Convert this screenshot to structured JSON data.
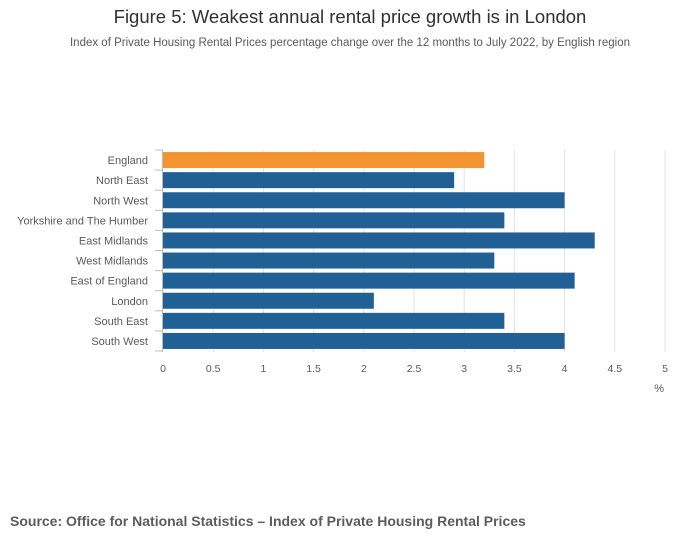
{
  "header": {
    "title": "Figure 5: Weakest annual rental price growth is in London",
    "subtitle": "Index of Private Housing Rental Prices percentage change over the 12 months to July 2022, by English region"
  },
  "footer": {
    "source": "Source: Office for National Statistics – Index of Private Housing Rental Prices"
  },
  "chart_data": {
    "type": "bar",
    "orientation": "horizontal",
    "title": "Figure 5: Weakest annual rental price growth is in London",
    "subtitle": "Index of Private Housing Rental Prices percentage change over the 12 months to July 2022, by English region",
    "categories": [
      "England",
      "North East",
      "North West",
      "Yorkshire and The Humber",
      "East Midlands",
      "West Midlands",
      "East of England",
      "London",
      "South East",
      "South West"
    ],
    "values": [
      3.2,
      2.9,
      4.0,
      3.4,
      4.3,
      3.3,
      4.1,
      2.1,
      3.4,
      4.0
    ],
    "xlabel": "%",
    "ylabel": "",
    "xlim": [
      0,
      5
    ],
    "xticks": [
      "0",
      "0.5",
      "1",
      "1.5",
      "2",
      "2.5",
      "3",
      "3.5",
      "4",
      "4.5",
      "5"
    ],
    "grid": true,
    "colors": {
      "highlight": "#f39431",
      "default": "#206095",
      "grid": "#e2e2e2",
      "axis": "#bcbcbc"
    },
    "highlight_category": "England"
  }
}
